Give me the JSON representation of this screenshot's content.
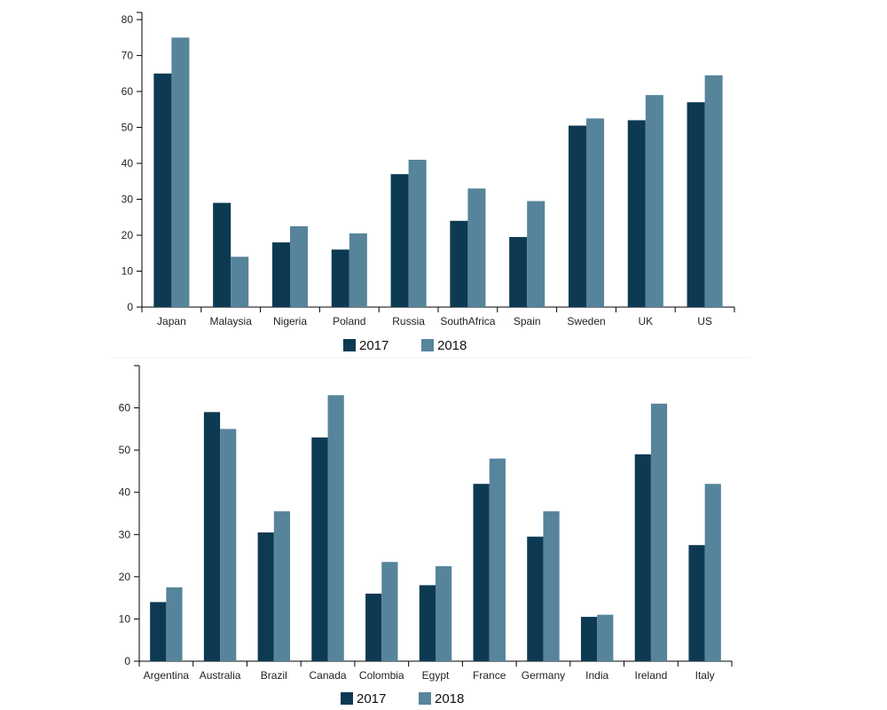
{
  "chart_data": [
    {
      "type": "bar",
      "title": "",
      "xlabel": "",
      "ylabel": "",
      "ylim": [
        0,
        82
      ],
      "yticks": [
        0,
        10,
        20,
        30,
        40,
        50,
        60,
        70,
        80
      ],
      "grid": false,
      "legend_position": "bottom-center",
      "categories": [
        "Japan",
        "Malaysia",
        "Nigeria",
        "Poland",
        "Russia",
        "SouthAfrica",
        "Spain",
        "Sweden",
        "UK",
        "US"
      ],
      "series": [
        {
          "name": "2017",
          "color": "#0d3a52",
          "values": [
            65,
            29,
            18,
            16,
            37,
            24,
            19.5,
            50.5,
            52,
            57
          ]
        },
        {
          "name": "2018",
          "color": "#56849b",
          "values": [
            75,
            14,
            22.5,
            20.5,
            41,
            33,
            29.5,
            52.5,
            59,
            64.5
          ]
        }
      ]
    },
    {
      "type": "bar",
      "title": "",
      "xlabel": "",
      "ylabel": "",
      "ylim": [
        0,
        70
      ],
      "yticks": [
        0,
        10,
        20,
        30,
        40,
        50,
        60
      ],
      "grid": false,
      "legend_position": "bottom-center",
      "categories": [
        "Argentina",
        "Australia",
        "Brazil",
        "Canada",
        "Colombia",
        "Egypt",
        "France",
        "Germany",
        "India",
        "Ireland",
        "Italy"
      ],
      "series": [
        {
          "name": "2017",
          "color": "#0d3a52",
          "values": [
            14,
            59,
            30.5,
            53,
            16,
            18,
            42,
            29.5,
            10.5,
            49,
            27.5
          ]
        },
        {
          "name": "2018",
          "color": "#56849b",
          "values": [
            17.5,
            55,
            35.5,
            63,
            23.5,
            22.5,
            48,
            35.5,
            11,
            61,
            42
          ]
        }
      ]
    }
  ]
}
